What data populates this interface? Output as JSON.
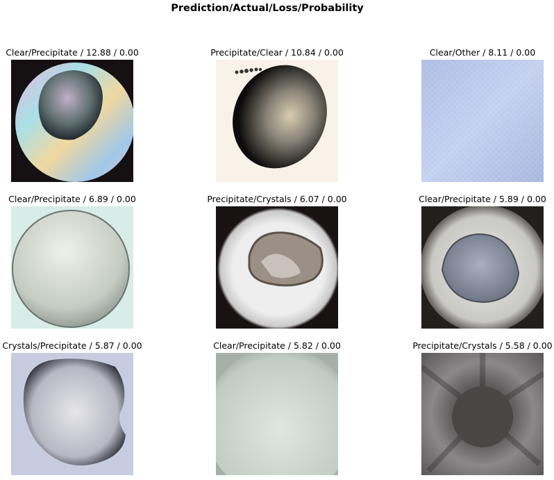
{
  "figure": {
    "suptitle": "Prediction/Actual/Loss/Probability"
  },
  "panels": [
    {
      "title": "Clear/Precipitate / 12.88 / 0.00",
      "image": "crystal-drop-birefringent"
    },
    {
      "title": "Precipitate/Clear / 10.84 / 0.00",
      "image": "crystal-drop-dark-oval"
    },
    {
      "title": "Clear/Other / 8.11 / 0.00",
      "image": "crystal-drop-blue-texture"
    },
    {
      "title": "Clear/Precipitate / 6.89 / 0.00",
      "image": "crystal-drop-pale-sphere"
    },
    {
      "title": "Precipitate/Crystals / 6.07 / 0.00",
      "image": "crystal-drop-crumpled"
    },
    {
      "title": "Clear/Precipitate / 5.89 / 0.00",
      "image": "crystal-drop-egg"
    },
    {
      "title": "Crystals/Precipitate / 5.87 / 0.00",
      "image": "crystal-drop-blob"
    },
    {
      "title": "Clear/Precipitate / 5.82 / 0.00",
      "image": "crystal-drop-green-sphere"
    },
    {
      "title": "Precipitate/Crystals / 5.58 / 0.00",
      "image": "crystal-drop-gray-burst"
    }
  ]
}
